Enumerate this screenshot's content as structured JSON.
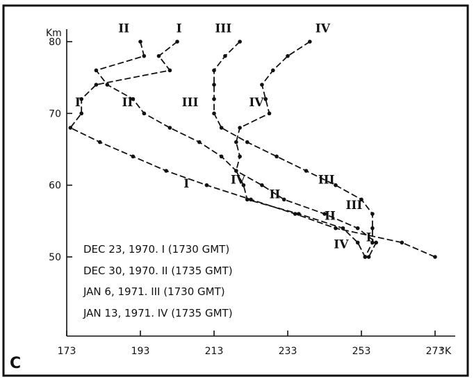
{
  "chart_data": {
    "type": "line",
    "panel_label": "C",
    "ylabel": "Km",
    "xlabel": "°K",
    "xlim": [
      173,
      273
    ],
    "ylim": [
      50,
      80
    ],
    "x_ticks": [
      173,
      193,
      213,
      233,
      253,
      273
    ],
    "x_tick_labels": [
      "173",
      "193",
      "213",
      "233",
      "253",
      "273"
    ],
    "y_ticks": [
      50,
      60,
      70,
      80
    ],
    "y_tick_labels": [
      "50",
      "60",
      "70",
      "80"
    ],
    "grid": false,
    "legend_position": "bottom-left",
    "legend": [
      {
        "id": "I",
        "text": "DEC 23, 1970. I (1730 GMT)"
      },
      {
        "id": "II",
        "text": "DEC 30, 1970. II (1735 GMT)"
      },
      {
        "id": "III",
        "text": "JAN 6, 1971. III (1730 GMT)"
      },
      {
        "id": "IV",
        "text": "JAN 13, 1971. IV (1735 GMT)"
      }
    ],
    "series": [
      {
        "name": "I",
        "labels": [
          [
            203.5,
            81.3
          ],
          [
            176,
            71
          ],
          [
            205.5,
            59.7
          ],
          [
            255,
            52.2
          ]
        ],
        "points": [
          [
            203,
            80
          ],
          [
            198,
            78
          ],
          [
            201,
            76
          ],
          [
            181,
            74
          ],
          [
            177,
            72
          ],
          [
            177,
            70
          ],
          [
            174,
            68
          ],
          [
            182,
            66
          ],
          [
            191,
            64
          ],
          [
            200,
            62
          ],
          [
            211,
            60
          ],
          [
            223,
            58
          ],
          [
            235,
            56
          ],
          [
            246,
            54
          ],
          [
            264,
            52
          ],
          [
            273,
            50
          ]
        ]
      },
      {
        "name": "II",
        "labels": [
          [
            188.5,
            81.3
          ],
          [
            189.5,
            71
          ],
          [
            229.5,
            58.2
          ],
          [
            244.5,
            55.2
          ]
        ],
        "points": [
          [
            193,
            80
          ],
          [
            194,
            78
          ],
          [
            181,
            76
          ],
          [
            184,
            74
          ],
          [
            191,
            72
          ],
          [
            194,
            70
          ],
          [
            201,
            68
          ],
          [
            209,
            66
          ],
          [
            215,
            64
          ],
          [
            219,
            62
          ],
          [
            226,
            60
          ],
          [
            232,
            58
          ],
          [
            243,
            56
          ],
          [
            252,
            54
          ],
          [
            257,
            52
          ],
          [
            255,
            50
          ]
        ]
      },
      {
        "name": "III",
        "labels": [
          [
            215.5,
            81.3
          ],
          [
            206.5,
            71
          ],
          [
            243.5,
            60.2
          ],
          [
            251,
            56.7
          ]
        ],
        "points": [
          [
            220,
            80
          ],
          [
            216,
            78
          ],
          [
            213,
            76
          ],
          [
            213,
            74
          ],
          [
            213,
            72
          ],
          [
            213,
            70
          ],
          [
            215,
            68
          ],
          [
            222,
            66
          ],
          [
            230,
            64
          ],
          [
            238,
            62
          ],
          [
            246,
            60
          ],
          [
            253,
            58
          ],
          [
            256,
            56
          ],
          [
            256,
            54
          ],
          [
            256,
            52
          ],
          [
            254,
            50
          ]
        ]
      },
      {
        "name": "IV",
        "labels": [
          [
            242.5,
            81.3
          ],
          [
            224.5,
            71
          ],
          [
            219.5,
            60.2
          ],
          [
            247.5,
            51.2
          ]
        ],
        "points": [
          [
            239,
            80
          ],
          [
            233,
            78
          ],
          [
            229,
            76
          ],
          [
            226,
            74
          ],
          [
            227,
            72
          ],
          [
            228,
            70
          ],
          [
            220,
            68
          ],
          [
            219,
            66
          ],
          [
            220,
            64
          ],
          [
            219,
            62
          ],
          [
            221,
            60
          ],
          [
            222,
            58
          ],
          [
            236,
            56
          ],
          [
            248,
            54
          ],
          [
            252,
            52
          ],
          [
            254,
            50
          ]
        ]
      }
    ]
  }
}
